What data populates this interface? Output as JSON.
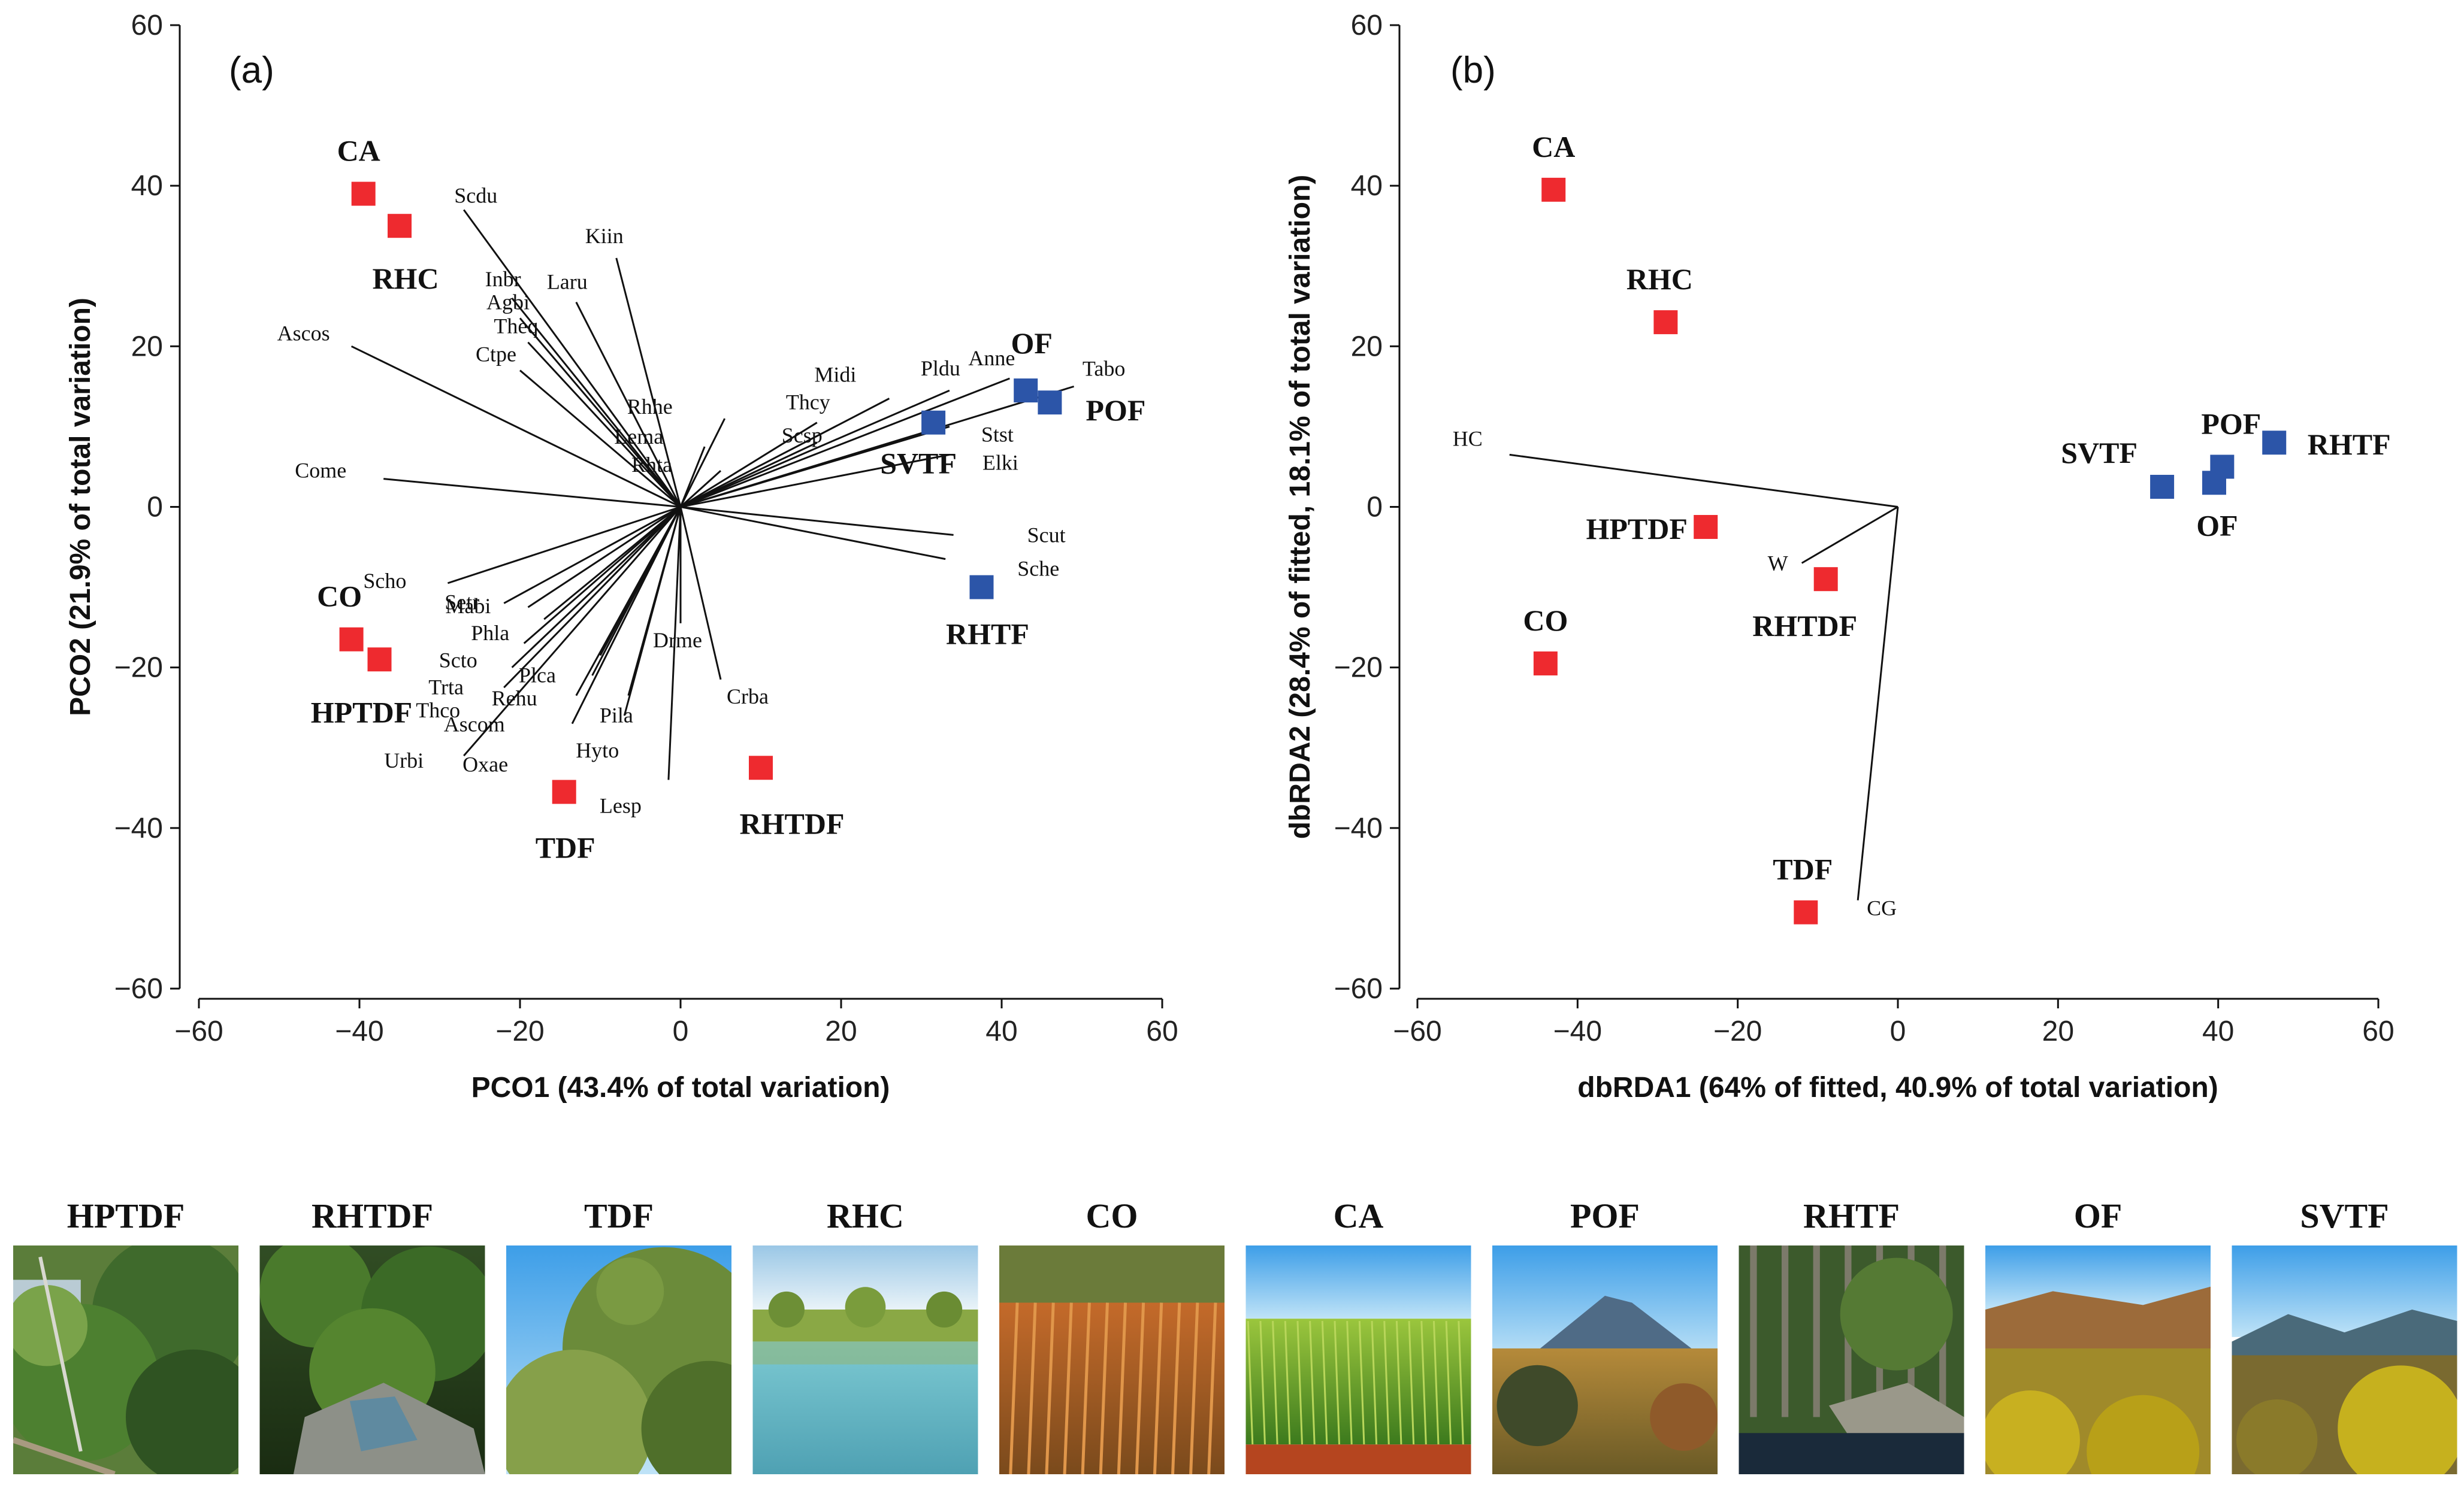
{
  "chart_data": [
    {
      "type": "scatter",
      "panel_label": "(a)",
      "xlabel": "PCO1 (43.4% of total variation)",
      "ylabel": "PCO2 (21.9% of total variation)",
      "xlim": [
        -60,
        60
      ],
      "ylim": [
        -60,
        60
      ],
      "x_ticks": [
        -60,
        -40,
        -20,
        0,
        20,
        40,
        60
      ],
      "y_ticks": [
        -60,
        -40,
        -20,
        0,
        20,
        40,
        60
      ],
      "tick_labels_x": [
        "−60",
        "−40",
        "−20",
        "0",
        "20",
        "40",
        "60"
      ],
      "tick_labels_y": [
        "−60",
        "−40",
        "−20",
        "0",
        "20",
        "40",
        "60"
      ],
      "points": [
        {
          "name": "CA",
          "x": -39.5,
          "y": 39,
          "color": "#ee2a2f",
          "label_pos": "above"
        },
        {
          "name": "RHC",
          "x": -35,
          "y": 35,
          "color": "#ee2a2f",
          "label_pos": "below"
        },
        {
          "name": "CO",
          "x": -41,
          "y": -16.5,
          "color": "#ee2a2f",
          "label_pos": "above"
        },
        {
          "name": "HPTDF",
          "x": -37.5,
          "y": -19,
          "color": "#ee2a2f",
          "label_pos": "below"
        },
        {
          "name": "TDF",
          "x": -14.5,
          "y": -35.5,
          "color": "#ee2a2f",
          "label_pos": "below"
        },
        {
          "name": "RHTDF",
          "x": 10,
          "y": -32.5,
          "color": "#ee2a2f",
          "label_pos": "below"
        },
        {
          "name": "OF",
          "x": 43,
          "y": 14.5,
          "color": "#2c55a8",
          "label_pos": "above"
        },
        {
          "name": "POF",
          "x": 46,
          "y": 13,
          "color": "#2c55a8",
          "label_pos": "right"
        },
        {
          "name": "SVTF",
          "x": 31.5,
          "y": 10.5,
          "color": "#2c55a8",
          "label_pos": "below"
        },
        {
          "name": "RHTF",
          "x": 37.5,
          "y": -10,
          "color": "#2c55a8",
          "label_pos": "below"
        }
      ],
      "vectors": [
        {
          "name": "Scdu",
          "x": -27,
          "y": 37
        },
        {
          "name": "Kiin",
          "x": -8,
          "y": 31
        },
        {
          "name": "Laru",
          "x": -13,
          "y": 25.5
        },
        {
          "name": "Inbr",
          "x": -21,
          "y": 26
        },
        {
          "name": "Agbi",
          "x": -20,
          "y": 23.5
        },
        {
          "name": "Theq",
          "x": -19,
          "y": 20.5
        },
        {
          "name": "Ascos",
          "x": -41,
          "y": 20
        },
        {
          "name": "Ctpe",
          "x": -20,
          "y": 17
        },
        {
          "name": "Come",
          "x": -37,
          "y": 3.5
        },
        {
          "name": "Scho",
          "x": -29,
          "y": -9.5
        },
        {
          "name": "Setr",
          "x": -22,
          "y": -12
        },
        {
          "name": "Mabi",
          "x": -19,
          "y": -12.5
        },
        {
          "name": "Phla",
          "x": -17,
          "y": -14
        },
        {
          "name": "Scto",
          "x": -19.5,
          "y": -17
        },
        {
          "name": "Trta",
          "x": -21,
          "y": -20
        },
        {
          "name": "Thco",
          "x": -22,
          "y": -22.5
        },
        {
          "name": "Urbi",
          "x": -27,
          "y": -31
        },
        {
          "name": "Plca",
          "x": -10,
          "y": -18.5
        },
        {
          "name": "Rehu",
          "x": -11,
          "y": -21
        },
        {
          "name": "Ascom",
          "x": -13,
          "y": -23.5
        },
        {
          "name": "Oxae",
          "x": -13.5,
          "y": -27
        },
        {
          "name": "Pila",
          "x": -6.5,
          "y": -23.5
        },
        {
          "name": "Hyto",
          "x": -7,
          "y": -26
        },
        {
          "name": "Lesp",
          "x": -1.5,
          "y": -34
        },
        {
          "name": "Drme",
          "x": 0,
          "y": -14.5
        },
        {
          "name": "Crba",
          "x": 5,
          "y": -21.5
        },
        {
          "name": "Rhhe",
          "x": 5.5,
          "y": 11
        },
        {
          "name": "Lema",
          "x": 3,
          "y": 7.5
        },
        {
          "name": "Rhta",
          "x": 5,
          "y": 4.5
        },
        {
          "name": "Thcy",
          "x": 17,
          "y": 10.5
        },
        {
          "name": "Scsp",
          "x": 17,
          "y": 8
        },
        {
          "name": "Midi",
          "x": 26,
          "y": 13.5
        },
        {
          "name": "Pldu",
          "x": 33.5,
          "y": 14.5
        },
        {
          "name": "Anne",
          "x": 41,
          "y": 16
        },
        {
          "name": "Tabo",
          "x": 49,
          "y": 15
        },
        {
          "name": "Stst",
          "x": 33.5,
          "y": 10
        },
        {
          "name": "Elki",
          "x": 33.5,
          "y": 6.5
        },
        {
          "name": "Scut",
          "x": 34,
          "y": -3.5
        },
        {
          "name": "Sche",
          "x": 33,
          "y": -6.5
        }
      ]
    },
    {
      "type": "scatter",
      "panel_label": "(b)",
      "xlabel": "dbRDA1 (64% of fitted, 40.9% of total variation)",
      "ylabel": "dbRDA2 (28.4% of fitted, 18.1% of total variation)",
      "xlim": [
        -60,
        60
      ],
      "ylim": [
        -60,
        60
      ],
      "x_ticks": [
        -60,
        -40,
        -20,
        0,
        20,
        40,
        60
      ],
      "y_ticks": [
        -60,
        -40,
        -20,
        0,
        20,
        40,
        60
      ],
      "tick_labels_x": [
        "−60",
        "−40",
        "−20",
        "0",
        "20",
        "40",
        "60"
      ],
      "tick_labels_y": [
        "−60",
        "−40",
        "−20",
        "0",
        "20",
        "40",
        "60"
      ],
      "vector_origin": {
        "x": 0,
        "y": 0
      },
      "points": [
        {
          "name": "CA",
          "x": -43,
          "y": 39.5,
          "color": "#ee2a2f",
          "label_pos": "above"
        },
        {
          "name": "RHC",
          "x": -29,
          "y": 23,
          "color": "#ee2a2f",
          "label_pos": "above"
        },
        {
          "name": "HPTDF",
          "x": -24,
          "y": -2.5,
          "color": "#ee2a2f",
          "label_pos": "left"
        },
        {
          "name": "RHTDF",
          "x": -9,
          "y": -9,
          "color": "#ee2a2f",
          "label_pos": "below"
        },
        {
          "name": "CO",
          "x": -44,
          "y": -19.5,
          "color": "#ee2a2f",
          "label_pos": "above"
        },
        {
          "name": "TDF",
          "x": -11.5,
          "y": -50.5,
          "color": "#ee2a2f",
          "label_pos": "above"
        },
        {
          "name": "SVTF",
          "x": 33,
          "y": 2.5,
          "color": "#2c55a8",
          "label_pos": "above-left"
        },
        {
          "name": "POF",
          "x": 40.5,
          "y": 5,
          "color": "#2c55a8",
          "label_pos": "above"
        },
        {
          "name": "OF",
          "x": 39.5,
          "y": 3,
          "color": "#2c55a8",
          "label_pos": "below"
        },
        {
          "name": "RHTF",
          "x": 47,
          "y": 8,
          "color": "#2c55a8",
          "label_pos": "right"
        }
      ],
      "vectors": [
        {
          "name": "HC",
          "x": -48.5,
          "y": 6.5
        },
        {
          "name": "W",
          "x": -12,
          "y": -7
        },
        {
          "name": "CG",
          "x": -5,
          "y": -49
        }
      ]
    }
  ],
  "photos": [
    {
      "label": "HPTDF",
      "scene": "forest"
    },
    {
      "label": "RHTDF",
      "scene": "stream"
    },
    {
      "label": "TDF",
      "scene": "dryforest"
    },
    {
      "label": "RHC",
      "scene": "lake"
    },
    {
      "label": "CO",
      "scene": "corn"
    },
    {
      "label": "CA",
      "scene": "cane"
    },
    {
      "label": "POF",
      "scene": "volcano"
    },
    {
      "label": "RHTF",
      "scene": "creek"
    },
    {
      "label": "OF",
      "scene": "oak"
    },
    {
      "label": "SVTF",
      "scene": "valley"
    }
  ],
  "colors": {
    "red": "#ee2a2f",
    "blue": "#2c55a8"
  }
}
